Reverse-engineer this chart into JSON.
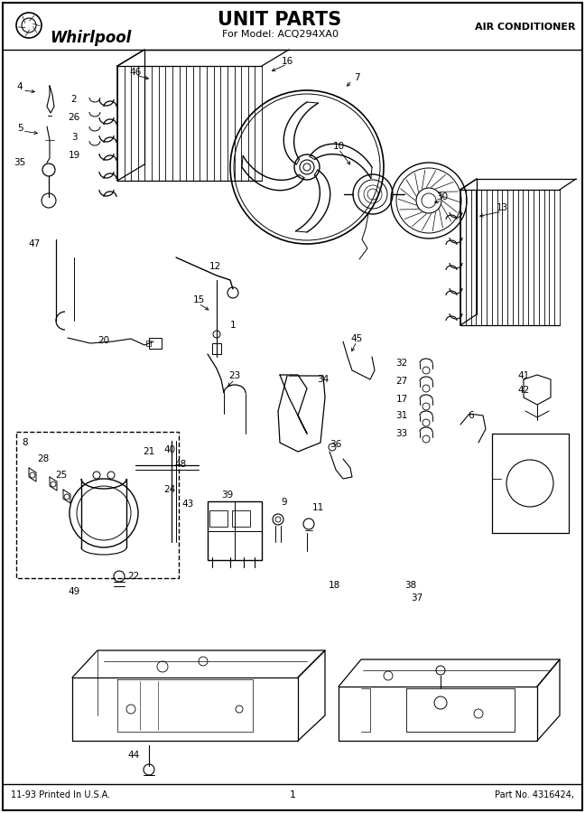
{
  "title": "UNIT PARTS",
  "subtitle": "For Model: ACQ294XA0",
  "brand": "Whirlpool",
  "top_right": "AIR CONDITIONER",
  "bottom_left": "11-93 Printed In U.S.A.",
  "bottom_center": "1",
  "bottom_right": "Part No. 4316424,",
  "bg_color": "#ffffff",
  "border_color": "#000000",
  "text_color": "#000000",
  "diagram_color": "#000000",
  "fig_width": 6.48,
  "fig_height": 9.0,
  "dpi": 100,
  "gray_color": "#888888",
  "light_gray": "#cccccc"
}
